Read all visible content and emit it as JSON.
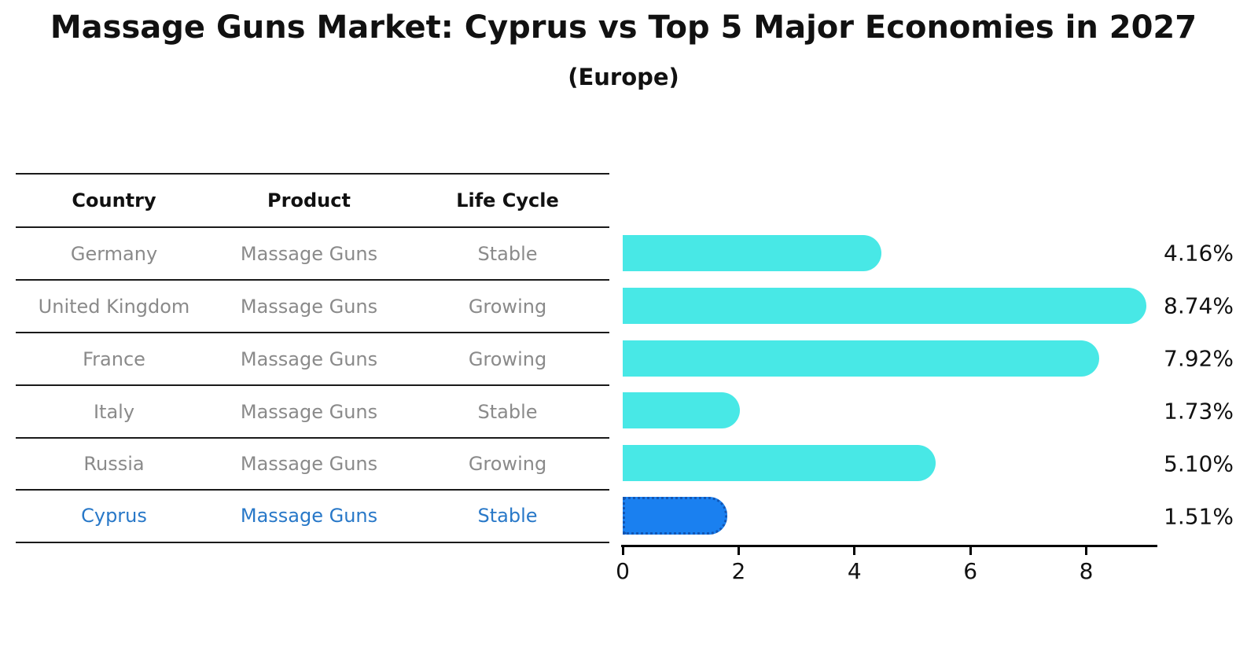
{
  "title": "Massage Guns Market: Cyprus vs Top 5 Major Economies in 2027",
  "subtitle": "(Europe)",
  "table": {
    "headers": {
      "country": "Country",
      "product": "Product",
      "life_cycle": "Life Cycle"
    },
    "rows": [
      {
        "country": "Germany",
        "product": "Massage Guns",
        "life_cycle": "Stable"
      },
      {
        "country": "United Kingdom",
        "product": "Massage Guns",
        "life_cycle": "Growing"
      },
      {
        "country": "France",
        "product": "Massage Guns",
        "life_cycle": "Growing"
      },
      {
        "country": "Italy",
        "product": "Massage Guns",
        "life_cycle": "Stable"
      },
      {
        "country": "Russia",
        "product": "Massage Guns",
        "life_cycle": "Growing"
      },
      {
        "country": "Cyprus",
        "product": "Massage Guns",
        "life_cycle": "Stable"
      }
    ],
    "highlighted_row": "Cyprus"
  },
  "chart_data": {
    "type": "bar",
    "orientation": "horizontal",
    "title": "Massage Guns Market: Cyprus vs Top 5 Major Economies in 2027 (Europe)",
    "categories": [
      "Germany",
      "United Kingdom",
      "France",
      "Italy",
      "Russia",
      "Cyprus"
    ],
    "values": [
      4.16,
      8.74,
      7.92,
      1.73,
      5.1,
      1.51
    ],
    "value_labels": [
      "4.16%",
      "8.74%",
      "7.92%",
      "1.73%",
      "5.10%",
      "1.51%"
    ],
    "x_ticks": [
      "0",
      "2",
      "4",
      "6",
      "8"
    ],
    "xlim": [
      0,
      9.2
    ],
    "grid": false,
    "legend": false,
    "bar_color": "#48E8E6",
    "highlight_index": 5,
    "highlight_bar_color": "#1A80F0",
    "highlight_border_color": "#1256B4",
    "highlight_text_color": "#2878C8"
  }
}
